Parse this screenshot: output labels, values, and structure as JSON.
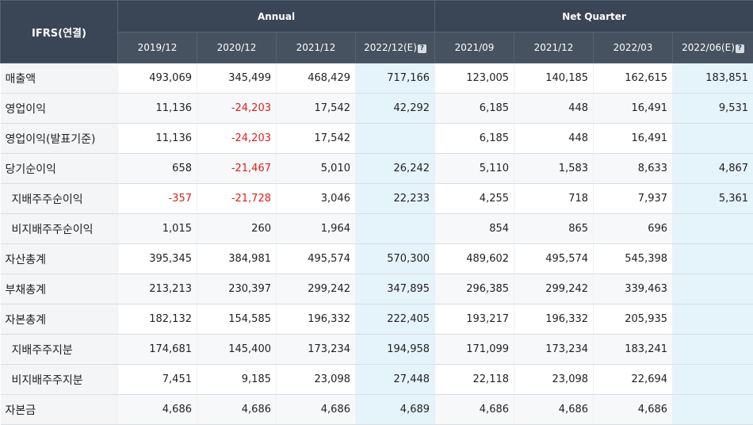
{
  "corner_label": "IFRS(연결)",
  "groups": {
    "annual": "Annual",
    "quarter": "Net Quarter"
  },
  "columns": [
    "2019/12",
    "2020/12",
    "2021/12",
    "2022/12(E)",
    "2021/09",
    "2021/12",
    "2022/03",
    "2022/06(E)"
  ],
  "estimate_icon": "?",
  "rows": [
    {
      "label": "매출액",
      "values": [
        "493,069",
        "345,499",
        "468,429",
        "717,166",
        "123,005",
        "140,185",
        "162,615",
        "183,851"
      ]
    },
    {
      "label": "영업이익",
      "values": [
        "11,136",
        "-24,203",
        "17,542",
        "42,292",
        "6,185",
        "448",
        "16,491",
        "9,531"
      ]
    },
    {
      "label": "영업이익(발표기준)",
      "values": [
        "11,136",
        "-24,203",
        "17,542",
        "",
        "6,185",
        "448",
        "16,491",
        ""
      ]
    },
    {
      "label": "당기순이익",
      "values": [
        "658",
        "-21,467",
        "5,010",
        "26,242",
        "5,110",
        "1,583",
        "8,633",
        "4,867"
      ]
    },
    {
      "label": "지배주주순이익",
      "values": [
        "-357",
        "-21,728",
        "3,046",
        "22,233",
        "4,255",
        "718",
        "7,937",
        "5,361"
      ]
    },
    {
      "label": "비지배주주순이익",
      "values": [
        "1,015",
        "260",
        "1,964",
        "",
        "854",
        "865",
        "696",
        ""
      ]
    },
    {
      "label": "자산총계",
      "values": [
        "395,345",
        "384,981",
        "495,574",
        "570,300",
        "489,602",
        "495,574",
        "545,398",
        ""
      ]
    },
    {
      "label": "부채총계",
      "values": [
        "213,213",
        "230,397",
        "299,242",
        "347,895",
        "296,385",
        "299,242",
        "339,463",
        ""
      ]
    },
    {
      "label": "자본총계",
      "values": [
        "182,132",
        "154,585",
        "196,332",
        "222,405",
        "193,217",
        "196,332",
        "205,935",
        ""
      ]
    },
    {
      "label": "지배주주지분",
      "values": [
        "174,681",
        "145,400",
        "173,234",
        "194,958",
        "171,099",
        "173,234",
        "183,241",
        ""
      ]
    },
    {
      "label": "비지배주주지분",
      "values": [
        "7,451",
        "9,185",
        "23,098",
        "27,448",
        "22,118",
        "23,098",
        "22,694",
        ""
      ]
    },
    {
      "label": "자본금",
      "values": [
        "4,686",
        "4,686",
        "4,686",
        "4,689",
        "4,686",
        "4,686",
        "4,686",
        ""
      ]
    }
  ]
}
